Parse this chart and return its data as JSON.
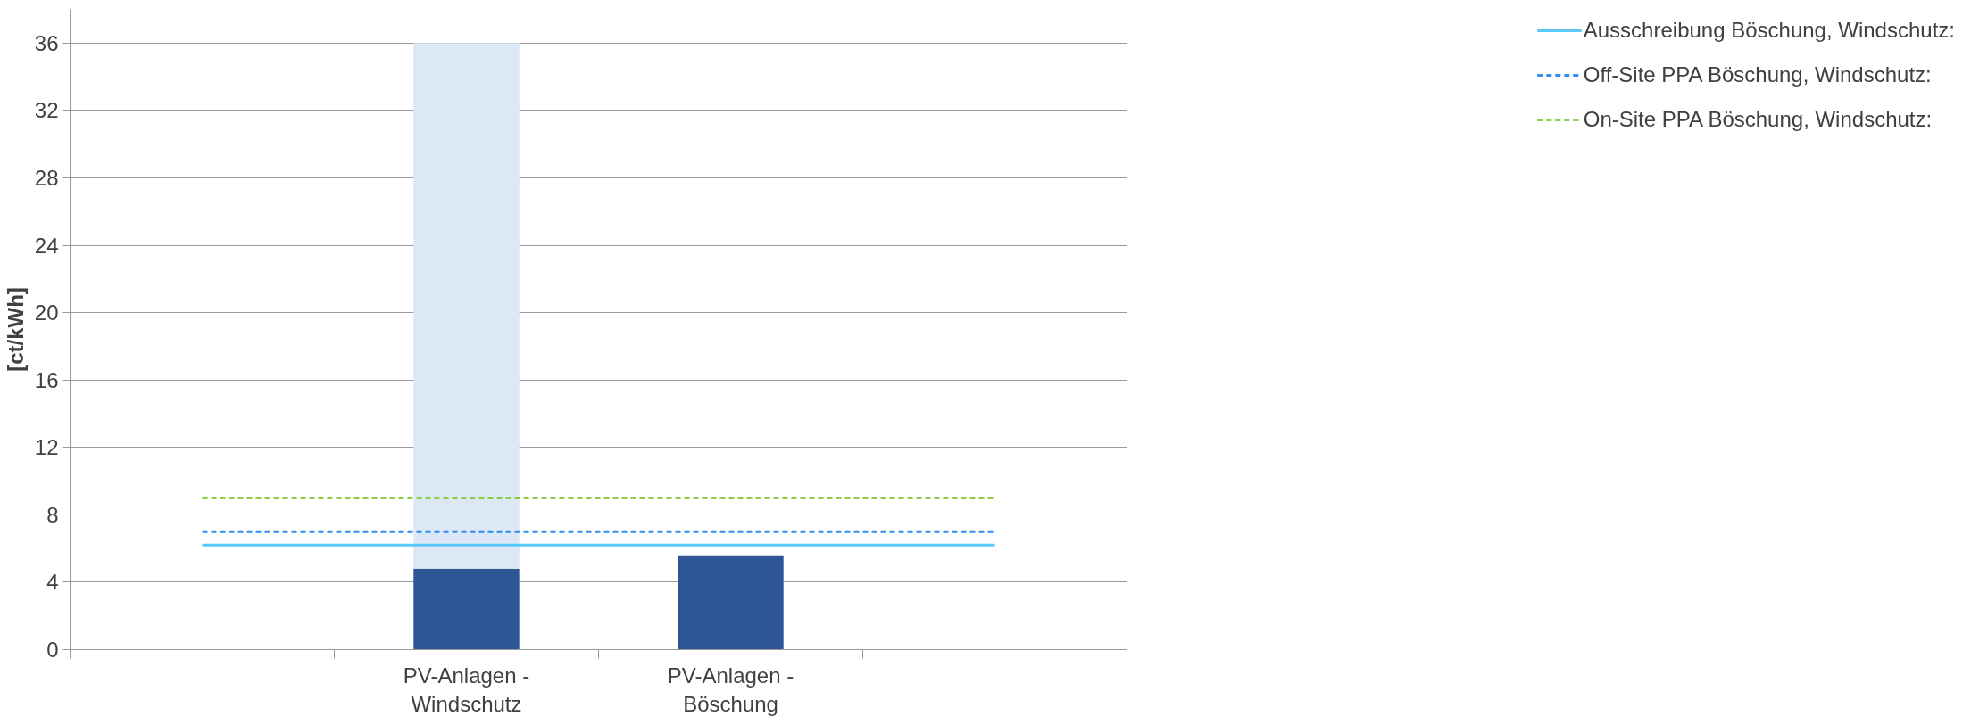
{
  "chart_data": {
    "type": "bar",
    "ylabel": "[ct/kWh]",
    "categories": [
      null,
      "PV-Anlagen - Windschutz",
      "PV-Anlagen - Böschung",
      null
    ],
    "stacked": true,
    "series": [
      {
        "color": "#2e5596",
        "values": [
          null,
          4.8,
          5.6,
          null
        ]
      },
      {
        "color": "#dce8f5",
        "values": [
          null,
          31.2,
          null,
          null
        ]
      },
      {
        "type": "line",
        "name": "Ausschreibung Böschung, Windschutz:",
        "color": "#5bc8fa",
        "line_style": "solid",
        "values": [
          6.2,
          6.2,
          6.2,
          6.2
        ]
      },
      {
        "type": "line",
        "name": "Off-Site PPA Böschung, Windschutz:",
        "color": "#2f8ff0",
        "line_style": "dashed",
        "values": [
          7,
          7,
          7,
          7
        ]
      },
      {
        "type": "line",
        "name": "On-Site PPA Böschung, Windschutz:",
        "color": "#8ccd45",
        "line_style": "dashed",
        "values": [
          9,
          9,
          9,
          9
        ]
      }
    ],
    "ylim": [
      0,
      38
    ],
    "yticks": [
      0,
      4,
      8,
      12,
      16,
      20,
      24,
      28,
      32,
      36
    ],
    "grid": "y",
    "legend": "right",
    "marker": "none"
  }
}
